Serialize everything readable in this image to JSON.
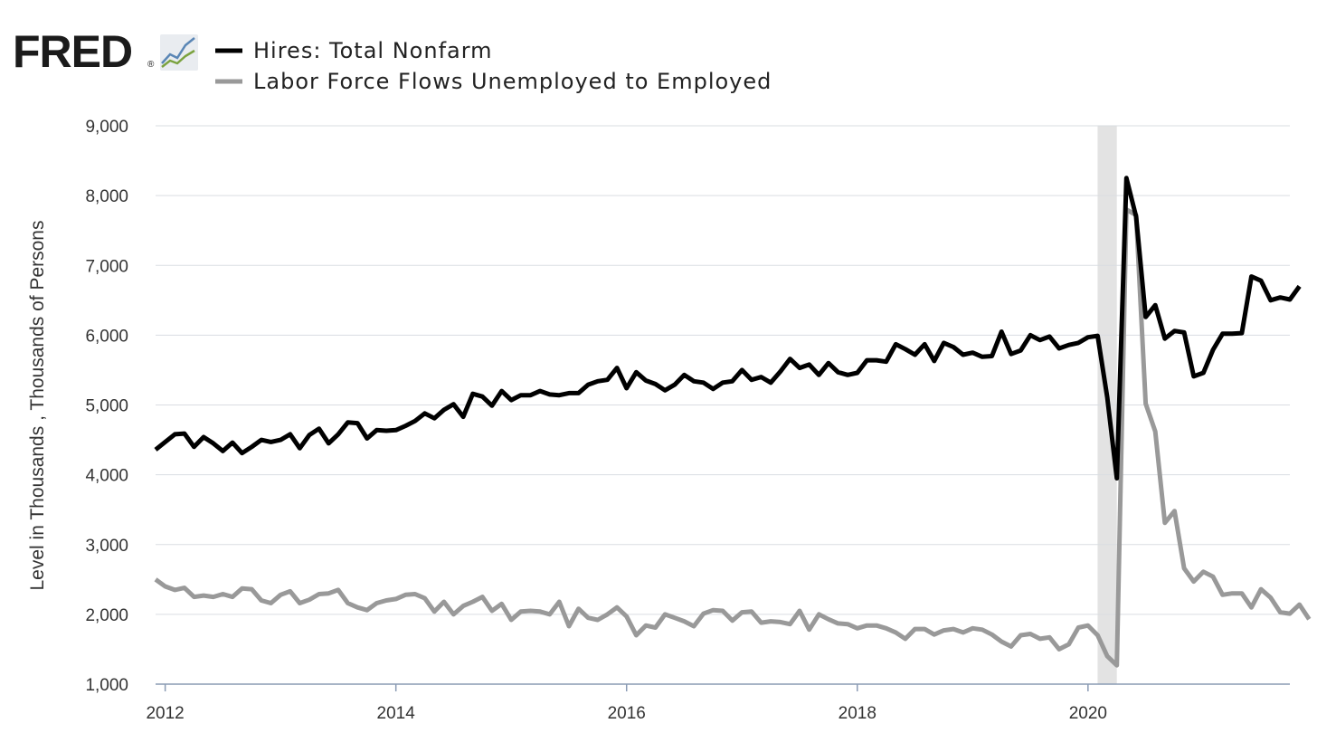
{
  "header": {
    "logo_text": "FRED",
    "logo_mark": "®",
    "logo_icon": "line-graph-icon"
  },
  "chart_data": {
    "type": "line",
    "title": "",
    "ylabel": "Level in Thousands , Thousands of Persons",
    "xlabel": "",
    "ylim": [
      1000,
      9000
    ],
    "y_ticks": [
      "1,000",
      "2,000",
      "3,000",
      "4,000",
      "5,000",
      "6,000",
      "7,000",
      "8,000",
      "9,000"
    ],
    "x_ticks": [
      "2012",
      "2014",
      "2016",
      "2018",
      "2020"
    ],
    "x_start": "2011-12",
    "x_end": "2021-10",
    "grid": true,
    "legend_position": "top-left",
    "recession_band": {
      "start": "2020-02",
      "end": "2020-04",
      "color": "#e3e3e3"
    },
    "series": [
      {
        "name": "Hires: Total Nonfarm",
        "color": "#000000",
        "values": [
          4360,
          4470,
          4580,
          4590,
          4400,
          4540,
          4450,
          4340,
          4460,
          4310,
          4400,
          4500,
          4470,
          4500,
          4580,
          4380,
          4570,
          4660,
          4450,
          4580,
          4750,
          4740,
          4520,
          4640,
          4630,
          4640,
          4700,
          4770,
          4880,
          4810,
          4930,
          5010,
          4830,
          5160,
          5120,
          4990,
          5200,
          5070,
          5140,
          5140,
          5200,
          5150,
          5140,
          5170,
          5170,
          5290,
          5340,
          5360,
          5530,
          5240,
          5470,
          5350,
          5300,
          5210,
          5290,
          5430,
          5340,
          5320,
          5230,
          5320,
          5340,
          5500,
          5360,
          5400,
          5320,
          5480,
          5660,
          5530,
          5580,
          5430,
          5600,
          5470,
          5430,
          5460,
          5640,
          5640,
          5620,
          5870,
          5800,
          5720,
          5870,
          5630,
          5890,
          5830,
          5720,
          5750,
          5690,
          5700,
          6050,
          5730,
          5780,
          6000,
          5930,
          5980,
          5810,
          5860,
          5890,
          5970,
          5990,
          5110,
          3950,
          8250,
          7700,
          6260,
          6430,
          5950,
          6060,
          6040,
          5410,
          5460,
          5790,
          6020,
          6020,
          6030,
          6840,
          6780,
          6500,
          6540,
          6510,
          6700
        ]
      },
      {
        "name": "Labor Force Flows Unemployed to Employed",
        "color": "#999999",
        "values": [
          2500,
          2400,
          2350,
          2380,
          2250,
          2270,
          2250,
          2290,
          2250,
          2370,
          2360,
          2200,
          2160,
          2280,
          2330,
          2160,
          2210,
          2290,
          2300,
          2350,
          2160,
          2100,
          2060,
          2160,
          2200,
          2220,
          2280,
          2290,
          2230,
          2040,
          2180,
          2000,
          2120,
          2180,
          2250,
          2050,
          2150,
          1920,
          2040,
          2050,
          2040,
          2000,
          2180,
          1830,
          2080,
          1950,
          1920,
          2000,
          2100,
          1970,
          1700,
          1840,
          1810,
          2000,
          1950,
          1900,
          1830,
          2010,
          2060,
          2050,
          1910,
          2030,
          2040,
          1880,
          1900,
          1890,
          1860,
          2050,
          1780,
          2000,
          1930,
          1870,
          1860,
          1800,
          1840,
          1840,
          1800,
          1740,
          1650,
          1790,
          1790,
          1710,
          1770,
          1790,
          1740,
          1800,
          1780,
          1710,
          1610,
          1540,
          1700,
          1720,
          1650,
          1670,
          1500,
          1570,
          1810,
          1840,
          1700,
          1400,
          1270,
          7800,
          7720,
          5020,
          4620,
          3310,
          3480,
          2660,
          2470,
          2610,
          2540,
          2280,
          2300,
          2300,
          2100,
          2360,
          2240,
          2030,
          2010,
          2140,
          1930
        ]
      }
    ]
  }
}
